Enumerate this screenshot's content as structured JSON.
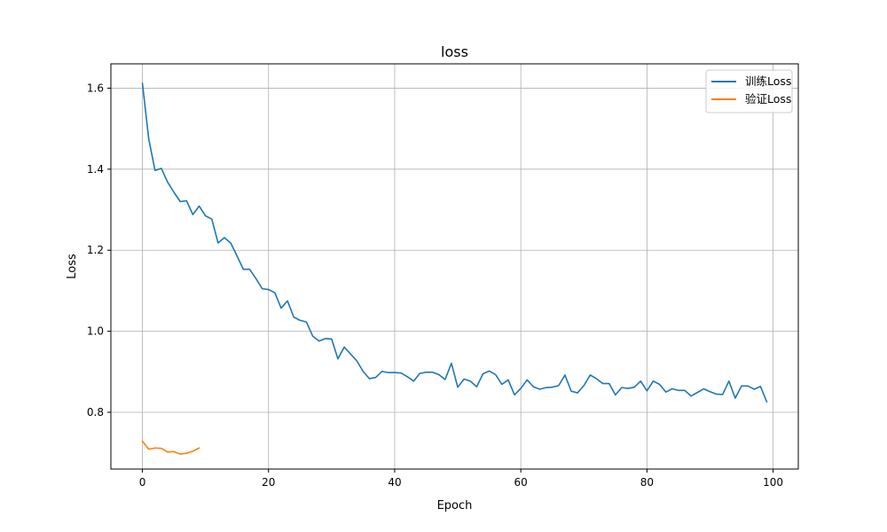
{
  "chart_data": {
    "type": "line",
    "title": "loss",
    "xlabel": "Epoch",
    "ylabel": "Loss",
    "xlim": [
      -5,
      104
    ],
    "ylim": [
      0.66,
      1.66
    ],
    "xticks": [
      0,
      20,
      40,
      60,
      80,
      100
    ],
    "yticks": [
      0.8,
      1.0,
      1.2,
      1.4,
      1.6
    ],
    "xtick_labels": [
      "0",
      "20",
      "40",
      "60",
      "80",
      "100"
    ],
    "ytick_labels": [
      "0.8",
      "1.0",
      "1.2",
      "1.4",
      "1.6"
    ],
    "grid": true,
    "legend_position": "top-right",
    "series": [
      {
        "name": "训练Loss",
        "color": "#1f77b4",
        "x": [
          0,
          1,
          2,
          3,
          4,
          5,
          6,
          7,
          8,
          9,
          10,
          11,
          12,
          13,
          14,
          15,
          16,
          17,
          18,
          19,
          20,
          21,
          22,
          23,
          24,
          25,
          26,
          27,
          28,
          29,
          30,
          31,
          32,
          33,
          34,
          35,
          36,
          37,
          38,
          39,
          40,
          41,
          42,
          43,
          44,
          45,
          46,
          47,
          48,
          49,
          50,
          51,
          52,
          53,
          54,
          55,
          56,
          57,
          58,
          59,
          60,
          61,
          62,
          63,
          64,
          65,
          66,
          67,
          68,
          69,
          70,
          71,
          72,
          73,
          74,
          75,
          76,
          77,
          78,
          79,
          80,
          81,
          82,
          83,
          84,
          85,
          86,
          87,
          88,
          89,
          90,
          91,
          92,
          93,
          94,
          95,
          96,
          97,
          98,
          99
        ],
        "values": [
          1.612,
          1.475,
          1.397,
          1.402,
          1.368,
          1.343,
          1.32,
          1.322,
          1.288,
          1.309,
          1.285,
          1.277,
          1.218,
          1.231,
          1.218,
          1.186,
          1.153,
          1.153,
          1.13,
          1.105,
          1.103,
          1.095,
          1.057,
          1.075,
          1.035,
          1.027,
          1.023,
          0.988,
          0.976,
          0.982,
          0.981,
          0.932,
          0.961,
          0.944,
          0.927,
          0.901,
          0.883,
          0.886,
          0.901,
          0.898,
          0.898,
          0.897,
          0.888,
          0.877,
          0.896,
          0.899,
          0.899,
          0.893,
          0.881,
          0.921,
          0.862,
          0.882,
          0.877,
          0.863,
          0.895,
          0.902,
          0.893,
          0.869,
          0.88,
          0.843,
          0.859,
          0.88,
          0.863,
          0.857,
          0.861,
          0.862,
          0.866,
          0.892,
          0.852,
          0.848,
          0.866,
          0.892,
          0.883,
          0.871,
          0.871,
          0.843,
          0.861,
          0.859,
          0.862,
          0.877,
          0.853,
          0.877,
          0.869,
          0.85,
          0.858,
          0.854,
          0.854,
          0.84,
          0.849,
          0.858,
          0.851,
          0.845,
          0.844,
          0.877,
          0.835,
          0.865,
          0.865,
          0.857,
          0.864,
          0.826
        ]
      },
      {
        "name": "验证Loss",
        "color": "#ff7f0e",
        "x": [
          0,
          1,
          2,
          3,
          4,
          5,
          6,
          7,
          8,
          9
        ],
        "values": [
          0.729,
          0.709,
          0.712,
          0.711,
          0.702,
          0.703,
          0.697,
          0.699,
          0.704,
          0.712
        ]
      }
    ]
  }
}
